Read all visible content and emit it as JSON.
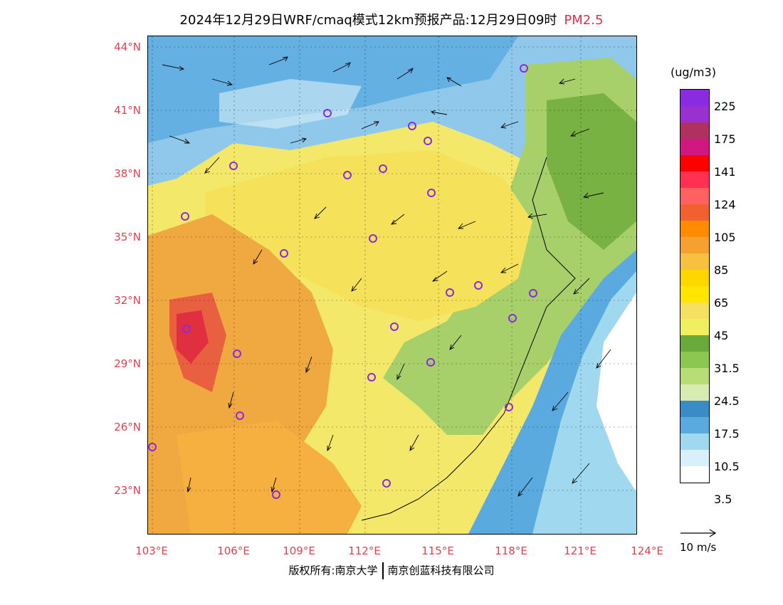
{
  "title": {
    "main": "2024年12月29日WRF/cmaq模式12km预报产品:12月29日09时",
    "pollutant": "PM2.5"
  },
  "axes": {
    "lat_labels": [
      "44°N",
      "41°N",
      "38°N",
      "35°N",
      "32°N",
      "29°N",
      "26°N",
      "23°N"
    ],
    "lon_labels": [
      "103°E",
      "106°E",
      "109°E",
      "112°E",
      "115°E",
      "118°E",
      "121°E",
      "124°E"
    ]
  },
  "colorbar": {
    "unit": "(ug/m3)",
    "labels": [
      "225",
      "175",
      "141",
      "124",
      "105",
      "85",
      "65",
      "45",
      "31.5",
      "24.5",
      "17.5",
      "10.5",
      "3.5"
    ],
    "colors": [
      "#8a2be2",
      "#9b30d0",
      "#b03060",
      "#d01880",
      "#ff0000",
      "#ff3050",
      "#ff6060",
      "#f06030",
      "#ff8c00",
      "#f5a030",
      "#f7c040",
      "#ffd700",
      "#ffe600",
      "#f5e060",
      "#eef060",
      "#6aaa3a",
      "#8cc850",
      "#b8dc78",
      "#d6ecb0",
      "#3a8cc8",
      "#5aaae0",
      "#a0d8f0",
      "#d8f0fa",
      "#ffffff"
    ]
  },
  "wind_reference": "10 m/s",
  "copyright": {
    "left": "版权所有:南京大学",
    "right": "南京创蓝科技有限公司"
  }
}
